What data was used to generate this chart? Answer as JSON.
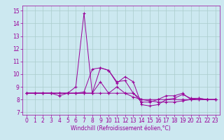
{
  "xlabel": "Windchill (Refroidissement éolien,°C)",
  "background_color": "#cce8f0",
  "line_color": "#990099",
  "grid_color": "#aacccc",
  "xlim": [
    -0.5,
    23.5
  ],
  "ylim": [
    6.8,
    15.4
  ],
  "yticks": [
    7,
    8,
    9,
    10,
    11,
    12,
    13,
    14,
    15
  ],
  "xticks": [
    0,
    1,
    2,
    3,
    4,
    5,
    6,
    7,
    8,
    9,
    10,
    11,
    12,
    13,
    14,
    15,
    16,
    17,
    18,
    19,
    20,
    21,
    22,
    23
  ],
  "series": [
    [
      8.5,
      8.5,
      8.5,
      8.5,
      8.5,
      8.5,
      9.0,
      14.8,
      8.5,
      10.5,
      10.3,
      9.3,
      9.8,
      9.4,
      7.6,
      7.5,
      7.6,
      8.0,
      8.1,
      8.4,
      8.1,
      8.1,
      8.0,
      8.0
    ],
    [
      8.5,
      8.5,
      8.5,
      8.5,
      8.3,
      8.5,
      8.5,
      8.5,
      8.5,
      9.4,
      8.5,
      9.0,
      8.5,
      8.2,
      8.0,
      8.0,
      8.0,
      8.0,
      8.0,
      8.0,
      8.0,
      8.1,
      8.0,
      8.0
    ],
    [
      8.5,
      8.5,
      8.5,
      8.5,
      8.5,
      8.5,
      8.5,
      8.5,
      8.5,
      8.5,
      8.5,
      8.5,
      8.5,
      8.5,
      8.0,
      7.9,
      7.8,
      7.8,
      7.8,
      7.9,
      8.0,
      8.0,
      8.0,
      8.0
    ],
    [
      8.5,
      8.5,
      8.5,
      8.5,
      8.5,
      8.5,
      8.5,
      8.6,
      10.4,
      10.5,
      10.3,
      9.4,
      9.5,
      8.5,
      7.8,
      7.8,
      8.0,
      8.3,
      8.3,
      8.5,
      8.0,
      8.0,
      8.0,
      8.0
    ]
  ]
}
